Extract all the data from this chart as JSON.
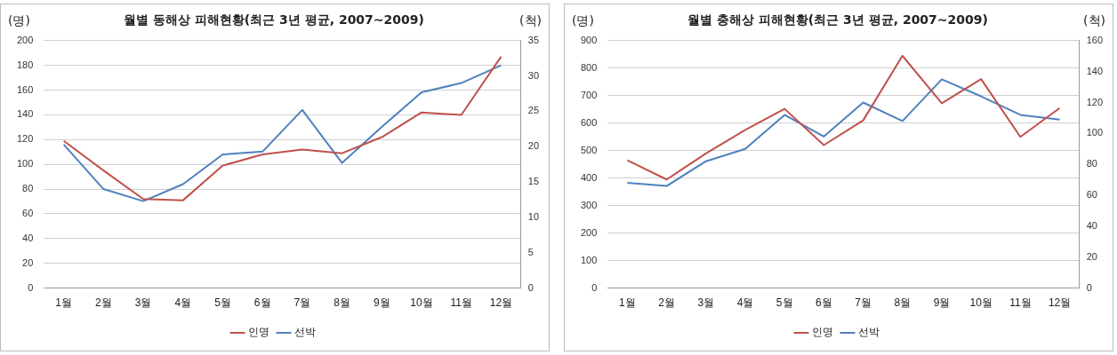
{
  "chart_data": [
    {
      "type": "line",
      "title": "월별 동해상 피해현황(최근 3년 평균, 2007~2009)",
      "ylabel": "(명)",
      "y2label": "(척)",
      "categories": [
        "1월",
        "2월",
        "3월",
        "4월",
        "5월",
        "6월",
        "7월",
        "8월",
        "9월",
        "10월",
        "11월",
        "12월"
      ],
      "series": [
        {
          "name": "인명",
          "color": "#c0504d",
          "values": [
            119,
            95,
            72,
            71,
            99,
            108,
            112,
            109,
            122,
            142,
            140,
            187
          ]
        },
        {
          "name": "선박",
          "color": "#4f81bd",
          "axis": "y2",
          "values": [
            20.3,
            14,
            12.3,
            14.7,
            18.9,
            19.3,
            25.2,
            17.7,
            22.8,
            27.7,
            29,
            31.5
          ]
        }
      ],
      "ylim": [
        0,
        200
      ],
      "yticks": [
        0,
        20,
        40,
        60,
        80,
        100,
        120,
        140,
        160,
        180,
        200
      ],
      "y2lim": [
        0,
        35
      ],
      "y2ticks": [
        0,
        5,
        10,
        15,
        20,
        25,
        30,
        35
      ],
      "grid": "y",
      "legend": "bottom",
      "marker": "none",
      "line_style": "solid"
    },
    {
      "type": "line",
      "title": "월별 충해상 피해현황(최근 3년 평균, 2007~2009)",
      "ylabel": "(명)",
      "y2label": "(척)",
      "categories": [
        "1월",
        "2월",
        "3월",
        "4월",
        "5월",
        "6월",
        "7월",
        "8월",
        "9월",
        "10월",
        "11월",
        "12월"
      ],
      "series": [
        {
          "name": "인명",
          "color": "#c0504d",
          "values": [
            465,
            395,
            490,
            575,
            652,
            520,
            610,
            845,
            672,
            760,
            550,
            655
          ]
        },
        {
          "name": "선박",
          "color": "#4f81bd",
          "axis": "y2",
          "values": [
            68,
            66,
            82,
            90,
            112,
            98,
            120,
            108,
            135,
            124,
            112,
            109
          ]
        }
      ],
      "ylim": [
        0,
        900
      ],
      "yticks": [
        0,
        100,
        200,
        300,
        400,
        500,
        600,
        700,
        800,
        900
      ],
      "y2lim": [
        0,
        160
      ],
      "y2ticks": [
        0,
        20,
        40,
        60,
        80,
        100,
        120,
        140,
        160
      ],
      "grid": "y",
      "legend": "bottom",
      "marker": "none",
      "line_style": "solid"
    }
  ]
}
